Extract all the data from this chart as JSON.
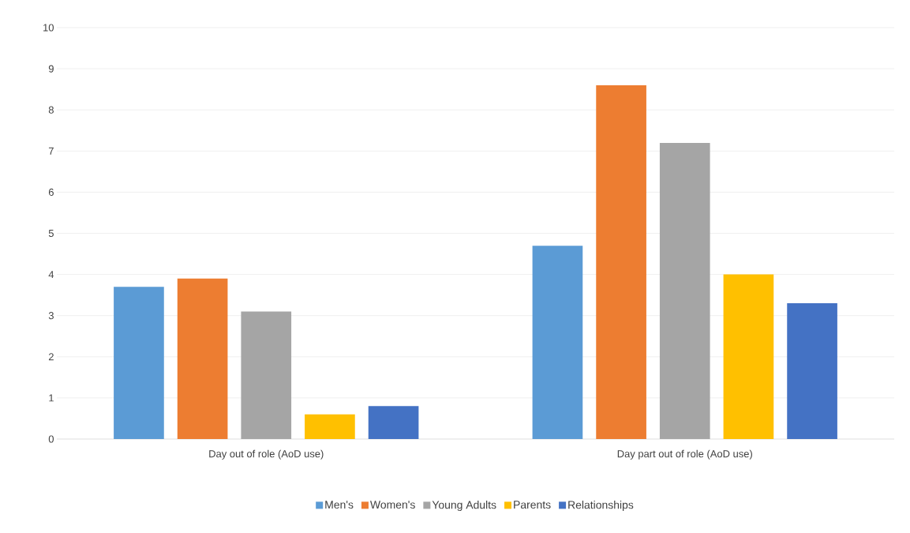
{
  "chart_data": {
    "type": "bar",
    "categories": [
      "Day out of role (AoD use)",
      "Day part out of role (AoD use)"
    ],
    "series": [
      {
        "name": "Men's",
        "color": "#5b9bd5",
        "values": [
          3.7,
          4.7
        ]
      },
      {
        "name": "Women's",
        "color": "#ed7d31",
        "values": [
          3.9,
          8.6
        ]
      },
      {
        "name": "Young Adults",
        "color": "#a5a5a5",
        "values": [
          3.1,
          7.2
        ]
      },
      {
        "name": "Parents",
        "color": "#ffc000",
        "values": [
          0.6,
          4.0
        ]
      },
      {
        "name": "Relationships",
        "color": "#4472c4",
        "values": [
          0.8,
          3.3
        ]
      }
    ],
    "ylim": [
      0,
      10
    ],
    "yticks": [
      0,
      1,
      2,
      3,
      4,
      5,
      6,
      7,
      8,
      9,
      10
    ],
    "grid": "y",
    "legend": "bottom"
  }
}
